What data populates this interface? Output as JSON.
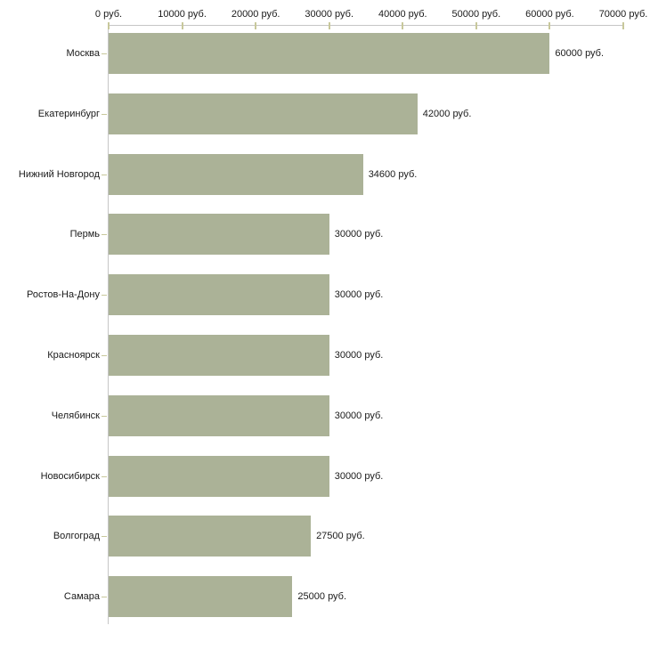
{
  "chart_data": {
    "type": "bar",
    "orientation": "horizontal",
    "unit": "руб.",
    "categories": [
      "Москва",
      "Екатеринбург",
      "Нижний Новгород",
      "Пермь",
      "Ростов-На-Дону",
      "Красноярск",
      "Челябинск",
      "Новосибирск",
      "Волгоград",
      "Самара"
    ],
    "values": [
      60000,
      42000,
      34600,
      30000,
      30000,
      30000,
      30000,
      30000,
      27500,
      25000
    ],
    "value_labels": [
      "60000 руб.",
      "42000 руб.",
      "34600 руб.",
      "30000 руб.",
      "30000 руб.",
      "30000 руб.",
      "30000 руб.",
      "30000 руб.",
      "27500 руб.",
      "25000 руб."
    ],
    "x_ticks": [
      {
        "value": 0,
        "label": "0 руб."
      },
      {
        "value": 10000,
        "label": "10000 руб."
      },
      {
        "value": 20000,
        "label": "20000 руб."
      },
      {
        "value": 30000,
        "label": "30000 руб."
      },
      {
        "value": 40000,
        "label": "40000 руб."
      },
      {
        "value": 50000,
        "label": "50000 руб."
      },
      {
        "value": 60000,
        "label": "60000 руб."
      },
      {
        "value": 70000,
        "label": "70000 руб."
      }
    ],
    "xlim": [
      0,
      70000
    ],
    "grid": false,
    "legend": "none",
    "colors": {
      "bar": "#abb297",
      "axis_line": "#c6c6c6",
      "tick_mark": "#c8c89b",
      "text": "#1a1a1a",
      "background": "#ffffff"
    }
  }
}
